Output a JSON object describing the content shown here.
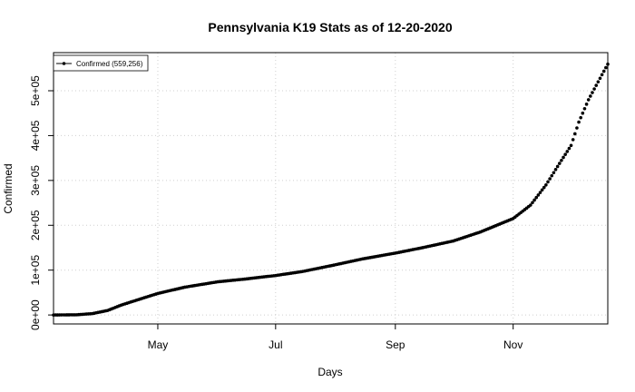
{
  "chart_data": {
    "type": "scatter",
    "title": "Pennsylvania K19 Stats as of 12-20-2020",
    "xlabel": "Days",
    "ylabel": "Confirmed",
    "x_range": [
      "2020-03-08",
      "2020-12-20"
    ],
    "ylim": [
      -20000,
      585000
    ],
    "x_ticks": [
      {
        "date": "2020-05-01",
        "label": "May"
      },
      {
        "date": "2020-07-01",
        "label": "Jul"
      },
      {
        "date": "2020-09-01",
        "label": "Sep"
      },
      {
        "date": "2020-11-01",
        "label": "Nov"
      }
    ],
    "y_ticks": [
      {
        "value": 0,
        "label": "0e+00"
      },
      {
        "value": 100000,
        "label": "1e+05"
      },
      {
        "value": 200000,
        "label": "2e+05"
      },
      {
        "value": 300000,
        "label": "3e+05"
      },
      {
        "value": 400000,
        "label": "4e+05"
      },
      {
        "value": 500000,
        "label": "5e+05"
      }
    ],
    "grid": true,
    "legend_position": "top-left",
    "series": [
      {
        "name": "Confirmed (559,256)",
        "color": "#000000",
        "anchors": [
          [
            "2020-03-08",
            0
          ],
          [
            "2020-03-20",
            500
          ],
          [
            "2020-03-28",
            3000
          ],
          [
            "2020-04-05",
            10000
          ],
          [
            "2020-04-12",
            22000
          ],
          [
            "2020-04-20",
            33000
          ],
          [
            "2020-05-01",
            48000
          ],
          [
            "2020-05-15",
            62000
          ],
          [
            "2020-06-01",
            74000
          ],
          [
            "2020-06-15",
            80000
          ],
          [
            "2020-07-01",
            88000
          ],
          [
            "2020-07-15",
            97000
          ],
          [
            "2020-08-01",
            112000
          ],
          [
            "2020-08-15",
            125000
          ],
          [
            "2020-09-01",
            138000
          ],
          [
            "2020-09-15",
            150000
          ],
          [
            "2020-10-01",
            165000
          ],
          [
            "2020-10-15",
            185000
          ],
          [
            "2020-11-01",
            215000
          ],
          [
            "2020-11-10",
            245000
          ],
          [
            "2020-11-18",
            290000
          ],
          [
            "2020-11-25",
            338000
          ],
          [
            "2020-12-01",
            378000
          ],
          [
            "2020-12-05",
            430000
          ],
          [
            "2020-12-10",
            480000
          ],
          [
            "2020-12-15",
            520000
          ],
          [
            "2020-12-20",
            559256
          ]
        ]
      }
    ]
  }
}
